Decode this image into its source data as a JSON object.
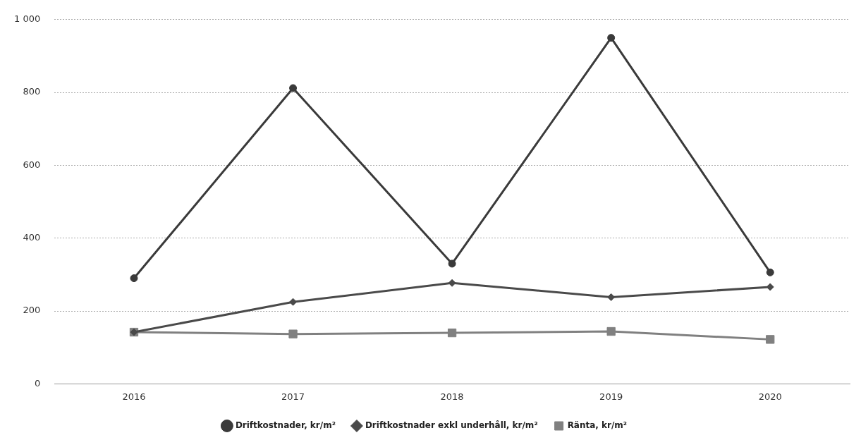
{
  "chart_data": {
    "type": "line",
    "categories": [
      "2016",
      "2017",
      "2018",
      "2019",
      "2020"
    ],
    "series": [
      {
        "name": "Driftkostnader, kr/m²",
        "color": "#3a3a3a",
        "marker": "circle",
        "values": [
          290,
          812,
          330,
          950,
          306
        ]
      },
      {
        "name": "Driftkostnader exkl underhåll, kr/m²",
        "color": "#4a4a4a",
        "marker": "diamond",
        "values": [
          142,
          225,
          277,
          238,
          266
        ]
      },
      {
        "name": "Ränta, kr/m²",
        "color": "#808080",
        "marker": "square",
        "values": [
          142,
          137,
          140,
          144,
          122
        ]
      }
    ],
    "ylim": [
      0,
      1000
    ],
    "yticks": [
      0,
      200,
      400,
      600,
      800,
      {
        "value": 1000,
        "label": "1 000"
      }
    ],
    "grid": "y",
    "legend": "bottom",
    "line_style": "solid"
  }
}
